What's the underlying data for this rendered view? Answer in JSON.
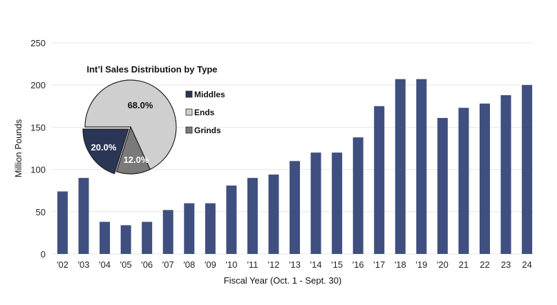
{
  "chart_data": [
    {
      "type": "bar",
      "title": "",
      "xlabel": "Fiscal Year (Oct. 1 - Sept. 30)",
      "ylabel": "Million Pounds",
      "ylim": [
        0,
        250
      ],
      "yticks": [
        0,
        50,
        100,
        150,
        200,
        250
      ],
      "grid": true,
      "categories": [
        "'02",
        "'03",
        "'04",
        "'05",
        "'06",
        "'07",
        "'08",
        "'09",
        "'10",
        "'11",
        "'12",
        "'13",
        "'14",
        "'15",
        "'16",
        "'17",
        "'18",
        "'19",
        "'20",
        "21",
        "22",
        "23",
        "24"
      ],
      "values": [
        74,
        90,
        38,
        34,
        38,
        52,
        60,
        60,
        81,
        90,
        94,
        110,
        120,
        120,
        138,
        175,
        207,
        207,
        161,
        173,
        178,
        188,
        200
      ],
      "color": "#3f4f7f"
    },
    {
      "type": "pie",
      "title": "Int’l Sales Distribution by Type",
      "legend_position": "right",
      "slices": [
        {
          "name": "Middles",
          "value": 20.0,
          "label": "20.0%",
          "color": "#2b3556"
        },
        {
          "name": "Ends",
          "value": 68.0,
          "label": "68.0%",
          "color": "#d0cfcf"
        },
        {
          "name": "Grinds",
          "value": 12.0,
          "label": "12.0%",
          "color": "#7a7a7a"
        }
      ]
    }
  ]
}
